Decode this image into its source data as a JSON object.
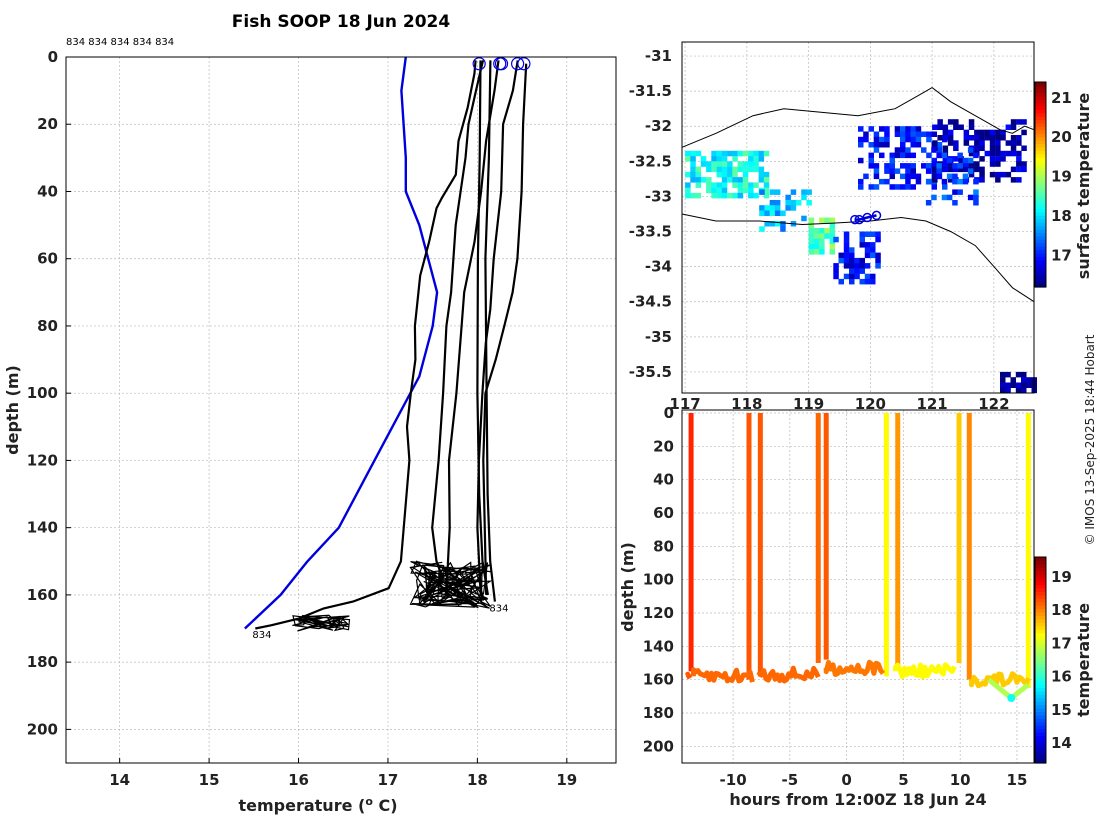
{
  "chart_data": [
    {
      "type": "line",
      "title": "Fish SOOP 18 Jun 2024",
      "xlabel": "temperature (",
      "xlabel_sup": "o",
      "xlabel_end": " C)",
      "ylabel": "depth (m)",
      "xlim": [
        13.4,
        19.55
      ],
      "ylim": [
        210,
        0
      ],
      "xticks": [
        14,
        15,
        16,
        17,
        18,
        19
      ],
      "yticks": [
        0,
        20,
        40,
        60,
        80,
        100,
        120,
        140,
        160,
        180,
        200
      ],
      "top_labels": "834 834 834 834 834",
      "profile_label": "834",
      "colors": {
        "climatology": "#0000dd",
        "profiles": "#000000",
        "markers": "#0000dd"
      },
      "series": [
        {
          "name": "climatology",
          "x": [
            17.2,
            17.15,
            17.2,
            17.2,
            17.35,
            17.55,
            17.5,
            17.35,
            17.05,
            16.75,
            16.45,
            16.1,
            15.8,
            15.4
          ],
          "y": [
            0,
            10,
            30,
            40,
            50,
            70,
            80,
            95,
            110,
            125,
            140,
            150,
            160,
            170
          ]
        },
        {
          "name": "profile-1",
          "x": [
            18.0,
            17.95,
            17.9,
            17.8,
            17.75,
            17.6,
            17.55,
            17.45,
            17.35,
            17.3,
            17.3,
            17.25,
            17.2,
            17.25,
            17.15,
            17.0,
            16.6,
            16.3,
            16.0,
            15.7,
            15.5
          ],
          "y": [
            1,
            5,
            15,
            25,
            35,
            42,
            45,
            55,
            65,
            80,
            90,
            100,
            110,
            120,
            150,
            158,
            162,
            164,
            167,
            169,
            170
          ]
        },
        {
          "name": "profile-2",
          "x": [
            18.05,
            18.0,
            17.9,
            17.85,
            17.75,
            17.7,
            17.65,
            17.6,
            17.55,
            17.5,
            17.55,
            17.6,
            17.4
          ],
          "y": [
            1,
            10,
            20,
            30,
            50,
            70,
            80,
            100,
            120,
            140,
            150,
            155,
            162
          ]
        },
        {
          "name": "profile-3",
          "x": [
            18.25,
            18.2,
            18.1,
            18.05,
            17.95,
            17.85,
            17.8,
            17.75,
            17.7,
            17.7,
            17.65
          ],
          "y": [
            1,
            10,
            25,
            40,
            55,
            70,
            85,
            100,
            120,
            140,
            160
          ]
        },
        {
          "name": "profile-4",
          "x": [
            18.45,
            18.4,
            18.3,
            18.25,
            18.2,
            18.15,
            18.1,
            18.05,
            18.0,
            18.0,
            18.05
          ],
          "y": [
            1,
            10,
            20,
            40,
            60,
            75,
            85,
            100,
            120,
            140,
            160
          ]
        },
        {
          "name": "profile-5",
          "x": [
            18.55,
            18.52,
            18.5,
            18.45,
            18.4,
            18.3,
            18.2,
            18.1,
            18.05,
            18.1
          ],
          "y": [
            2,
            20,
            40,
            60,
            70,
            80,
            90,
            100,
            120,
            160
          ]
        },
        {
          "name": "profile-6",
          "x": [
            18.02,
            18.02,
            18.0,
            18.0,
            18.02,
            18.05,
            18.1
          ],
          "y": [
            1,
            30,
            60,
            100,
            130,
            150,
            160
          ]
        },
        {
          "name": "profile-7",
          "x": [
            18.15,
            18.12,
            18.1,
            18.1,
            18.12,
            18.15,
            18.2
          ],
          "y": [
            1,
            30,
            60,
            100,
            130,
            150,
            162
          ]
        }
      ],
      "surface_markers": [
        18.02,
        18.25,
        18.27,
        18.45,
        18.52
      ]
    },
    {
      "type": "heatmap",
      "title": "",
      "xlabel": "",
      "ylabel": "",
      "colorbar_label": "surface temperature",
      "xlim": [
        116.95,
        122.65
      ],
      "ylim": [
        -35.8,
        -30.8
      ],
      "xtick_labels": [
        "117",
        "118",
        "119",
        "120",
        "121",
        "122"
      ],
      "yticks": [
        -31,
        -31.5,
        -32,
        -32.5,
        -33,
        -33.5,
        -34,
        -34.5,
        -35,
        -35.5
      ],
      "colorbar_ticks": [
        17,
        18,
        19,
        20,
        21
      ],
      "colorbar_range": [
        16.2,
        21.4
      ],
      "coastline_north": [
        [
          116.95,
          -32.3
        ],
        [
          117.5,
          -32.1
        ],
        [
          118.1,
          -31.85
        ],
        [
          118.6,
          -31.75
        ],
        [
          119.2,
          -31.8
        ],
        [
          119.8,
          -31.85
        ],
        [
          120.4,
          -31.75
        ],
        [
          120.8,
          -31.55
        ],
        [
          121.0,
          -31.45
        ],
        [
          121.3,
          -31.65
        ],
        [
          121.7,
          -31.85
        ],
        [
          122.1,
          -32.05
        ],
        [
          122.3,
          -32.1
        ],
        [
          122.5,
          -32.0
        ],
        [
          122.65,
          -32.05
        ]
      ],
      "coastline_south": [
        [
          116.95,
          -33.25
        ],
        [
          117.5,
          -33.35
        ],
        [
          118.2,
          -33.35
        ],
        [
          118.9,
          -33.4
        ],
        [
          119.4,
          -33.38
        ],
        [
          120.0,
          -33.35
        ],
        [
          120.5,
          -33.3
        ],
        [
          120.9,
          -33.35
        ],
        [
          121.3,
          -33.5
        ],
        [
          121.7,
          -33.7
        ],
        [
          122.0,
          -34.0
        ],
        [
          122.3,
          -34.3
        ],
        [
          122.65,
          -34.5
        ]
      ],
      "track": [
        [
          119.75,
          -33.33
        ],
        [
          119.82,
          -33.33
        ],
        [
          119.95,
          -33.3
        ],
        [
          120.1,
          -33.27
        ]
      ]
    },
    {
      "type": "scatter",
      "title": "",
      "xlabel": "hours from 12:00Z 18 Jun 24",
      "ylabel": "depth (m)",
      "colorbar_label": "temperature",
      "xlim": [
        -14.5,
        16.5
      ],
      "ylim": [
        210,
        0
      ],
      "xticks": [
        -10,
        -5,
        0,
        5,
        10,
        15
      ],
      "yticks": [
        0,
        20,
        40,
        60,
        80,
        100,
        120,
        140,
        160,
        180,
        200
      ],
      "colorbar_ticks": [
        14,
        15,
        16,
        17,
        18,
        19
      ],
      "colorbar_range": [
        13.4,
        19.6
      ],
      "segments": [
        {
          "t0": -14.0,
          "t1": -13.8,
          "depth": 157,
          "temp": 18.3
        },
        {
          "t0": -13.5,
          "t1": -8.3,
          "depth": 158,
          "temp": 18.2
        },
        {
          "t0": -7.7,
          "t1": -2.3,
          "depth": 157,
          "temp": 18.2
        },
        {
          "t0": -1.8,
          "t1": 3.4,
          "depth": 153,
          "temp": 18.1
        },
        {
          "t0": 4.3,
          "t1": 9.6,
          "depth": 155,
          "temp": 17.3
        },
        {
          "t0": 11.0,
          "t1": 16.0,
          "depth": 160,
          "temp": 17.6
        }
      ],
      "casts": [
        {
          "t": -13.7,
          "temp": 18.6,
          "bottom": 155
        },
        {
          "t": -8.6,
          "temp": 18.3,
          "bottom": 160
        },
        {
          "t": -7.6,
          "temp": 18.3,
          "bottom": 158
        },
        {
          "t": -2.5,
          "temp": 18.2,
          "bottom": 150
        },
        {
          "t": -1.8,
          "temp": 18.3,
          "bottom": 148
        },
        {
          "t": 3.5,
          "temp": 17.3,
          "bottom": 158
        },
        {
          "t": 4.5,
          "temp": 17.9,
          "bottom": 154
        },
        {
          "t": 9.9,
          "temp": 17.6,
          "bottom": 150
        },
        {
          "t": 10.8,
          "temp": 18.0,
          "bottom": 160
        },
        {
          "t": 16.0,
          "temp": 17.3,
          "bottom": 165
        }
      ],
      "dip": {
        "t_start": 12.5,
        "t_bottom": 14.5,
        "t_end": 16.0,
        "depth_start": 160,
        "depth_bottom": 171,
        "depth_end": 163,
        "temp_bottom": 15.8
      }
    }
  ],
  "credit": "© IMOS 13-Sep-2025 18:44 Hobart"
}
